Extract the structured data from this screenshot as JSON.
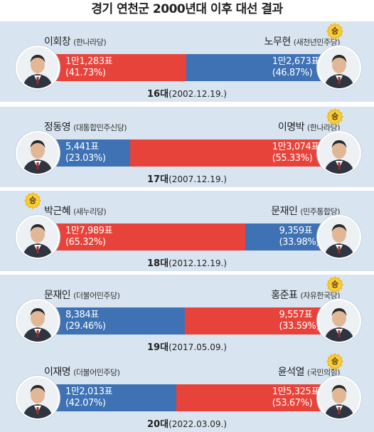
{
  "title": "경기 연천군 2000년대 이후 대선 결과",
  "colors": {
    "conservative": "#e8433a",
    "liberal": "#3e72b4",
    "panel": "#d8e4f0"
  },
  "winner_badge": "승",
  "elections": [
    {
      "era": "16대",
      "date": "(2002.12.19.)",
      "left": {
        "name": "이회창",
        "party": "(한나라당)",
        "votes_text": "1만1,283표",
        "pct_text": "(41.73%)",
        "color": "red"
      },
      "right": {
        "name": "노무현",
        "party": "(새천년민주당)",
        "votes_text": "1만2,673표",
        "pct_text": "(46.87%)",
        "color": "blue"
      },
      "winner": "right"
    },
    {
      "era": "17대",
      "date": "(2007.12.19.)",
      "left": {
        "name": "정동영",
        "party": "(대통합민주신당)",
        "votes_text": "5,441표",
        "pct_text": "(23.03%)",
        "color": "blue"
      },
      "right": {
        "name": "이명박",
        "party": "(한나라당)",
        "votes_text": "1만3,074표",
        "pct_text": "(55.33%)",
        "color": "red"
      },
      "winner": "right"
    },
    {
      "era": "18대",
      "date": "(2012.12.19.)",
      "left": {
        "name": "박근혜",
        "party": "(새누리당)",
        "votes_text": "1만7,989표",
        "pct_text": "(65.32%)",
        "color": "red"
      },
      "right": {
        "name": "문재인",
        "party": "(민주통합당)",
        "votes_text": "9,359표",
        "pct_text": "(33.98%)",
        "color": "blue"
      },
      "winner": "left"
    },
    {
      "era": "19대",
      "date": "(2017.05.09.)",
      "left": {
        "name": "문재인",
        "party": "(더불어민주당)",
        "votes_text": "8,384표",
        "pct_text": "(29.46%)",
        "color": "blue"
      },
      "right": {
        "name": "홍준표",
        "party": "(자유한국당)",
        "votes_text": "9,557표",
        "pct_text": "(33.59%)",
        "color": "red"
      },
      "winner": "right"
    },
    {
      "era": "20대",
      "date": "(2022.03.09.)",
      "left": {
        "name": "이재명",
        "party": "(더불어민주당)",
        "votes_text": "1만2,013표",
        "pct_text": "(42.07%)",
        "color": "blue"
      },
      "right": {
        "name": "윤석열",
        "party": "(국민의힘)",
        "votes_text": "1만5,325표",
        "pct_text": "(53.67%)",
        "color": "red"
      },
      "winner": "right"
    }
  ],
  "chart_data": {
    "type": "bar",
    "title": "경기 연천군 2000년대 이후 대선 결과",
    "categories": [
      "16대",
      "17대",
      "18대",
      "19대",
      "20대"
    ],
    "series": [
      {
        "name": "left",
        "candidates": [
          "이회창",
          "정동영",
          "박근혜",
          "문재인",
          "이재명"
        ],
        "votes": [
          11283,
          5441,
          17989,
          8384,
          12013
        ],
        "values": [
          41.73,
          23.03,
          65.32,
          29.46,
          42.07
        ]
      },
      {
        "name": "right",
        "candidates": [
          "노무현",
          "이명박",
          "문재인",
          "홍준표",
          "윤석열"
        ],
        "votes": [
          12673,
          13074,
          9359,
          9557,
          15325
        ],
        "values": [
          46.87,
          55.33,
          33.98,
          33.59,
          53.67
        ]
      }
    ],
    "ylim": [
      0,
      100
    ]
  }
}
